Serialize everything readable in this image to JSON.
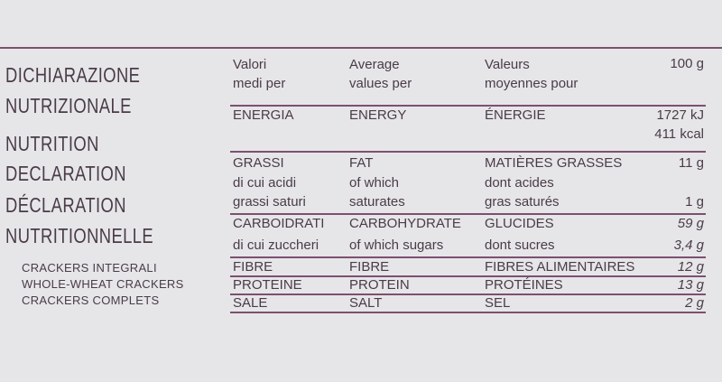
{
  "heading": [
    "DICHIARAZIONE",
    "NUTRIZIONALE",
    "NUTRITION",
    "DECLARATION",
    "DÉCLARATION",
    "NUTRITIONNELLE"
  ],
  "products": [
    "CRACKERS INTEGRALI",
    "WHOLE-WHEAT CRACKERS",
    "CRACKERS COMPLETS"
  ],
  "table": {
    "header": [
      "Valori\nmedi per",
      "Average\nvalues per",
      "Valeurs\nmoyennes pour",
      "100 g"
    ],
    "rows": [
      [
        "ENERGIA",
        "ENERGY",
        "ÉNERGIE",
        "1727 kJ\n411 kcal"
      ],
      [
        "GRASSI",
        "FAT",
        "MATIÈRES GRASSES",
        "11 g"
      ],
      [
        "di cui acidi\ngrassi saturi",
        "of which\nsaturates",
        "dont acides\ngras saturés",
        "1 g"
      ],
      [
        "CARBOIDRATI",
        "CARBOHYDRATE",
        "GLUCIDES",
        "59 g"
      ],
      [
        "di cui zuccheri",
        "of which sugars",
        "dont sucres",
        "3,4 g"
      ],
      [
        "FIBRE",
        "FIBRE",
        "FIBRES ALIMENTAIRES",
        "12 g"
      ],
      [
        "PROTEINE",
        "PROTEIN",
        "PROTÉINES",
        "13 g"
      ],
      [
        "SALE",
        "SALT",
        "SEL",
        "2 g"
      ]
    ]
  }
}
